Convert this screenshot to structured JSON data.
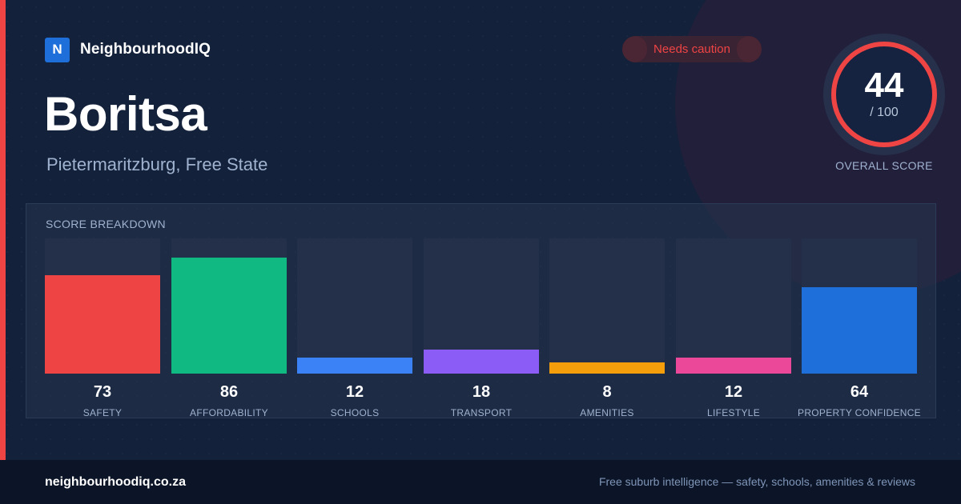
{
  "brand": {
    "logo_letter": "N",
    "name": "NeighbourhoodIQ"
  },
  "status_badge": {
    "label": "Needs caution",
    "color": "#ef4444"
  },
  "suburb": {
    "name": "Boritsa",
    "location": "Pietermaritzburg, Free State"
  },
  "overall_score": {
    "value": 44,
    "max_label": "/ 100",
    "max": 100,
    "caption": "OVERALL SCORE",
    "ring_color": "#ef4444"
  },
  "breakdown": {
    "heading": "SCORE BREAKDOWN",
    "items": [
      {
        "label": "SAFETY",
        "value": 73,
        "color": "#ef4444"
      },
      {
        "label": "AFFORDABILITY",
        "value": 86,
        "color": "#10b981"
      },
      {
        "label": "SCHOOLS",
        "value": 12,
        "color": "#3b82f6"
      },
      {
        "label": "TRANSPORT",
        "value": 18,
        "color": "#8b5cf6"
      },
      {
        "label": "AMENITIES",
        "value": 8,
        "color": "#f59e0b"
      },
      {
        "label": "LIFESTYLE",
        "value": 12,
        "color": "#ec4899"
      },
      {
        "label": "PROPERTY CONFIDENCE",
        "value": 64,
        "color": "#1e6fd9"
      }
    ]
  },
  "footer": {
    "domain": "neighbourhoodiq.co.za",
    "tagline": "Free suburb intelligence — safety, schools, amenities & reviews"
  }
}
